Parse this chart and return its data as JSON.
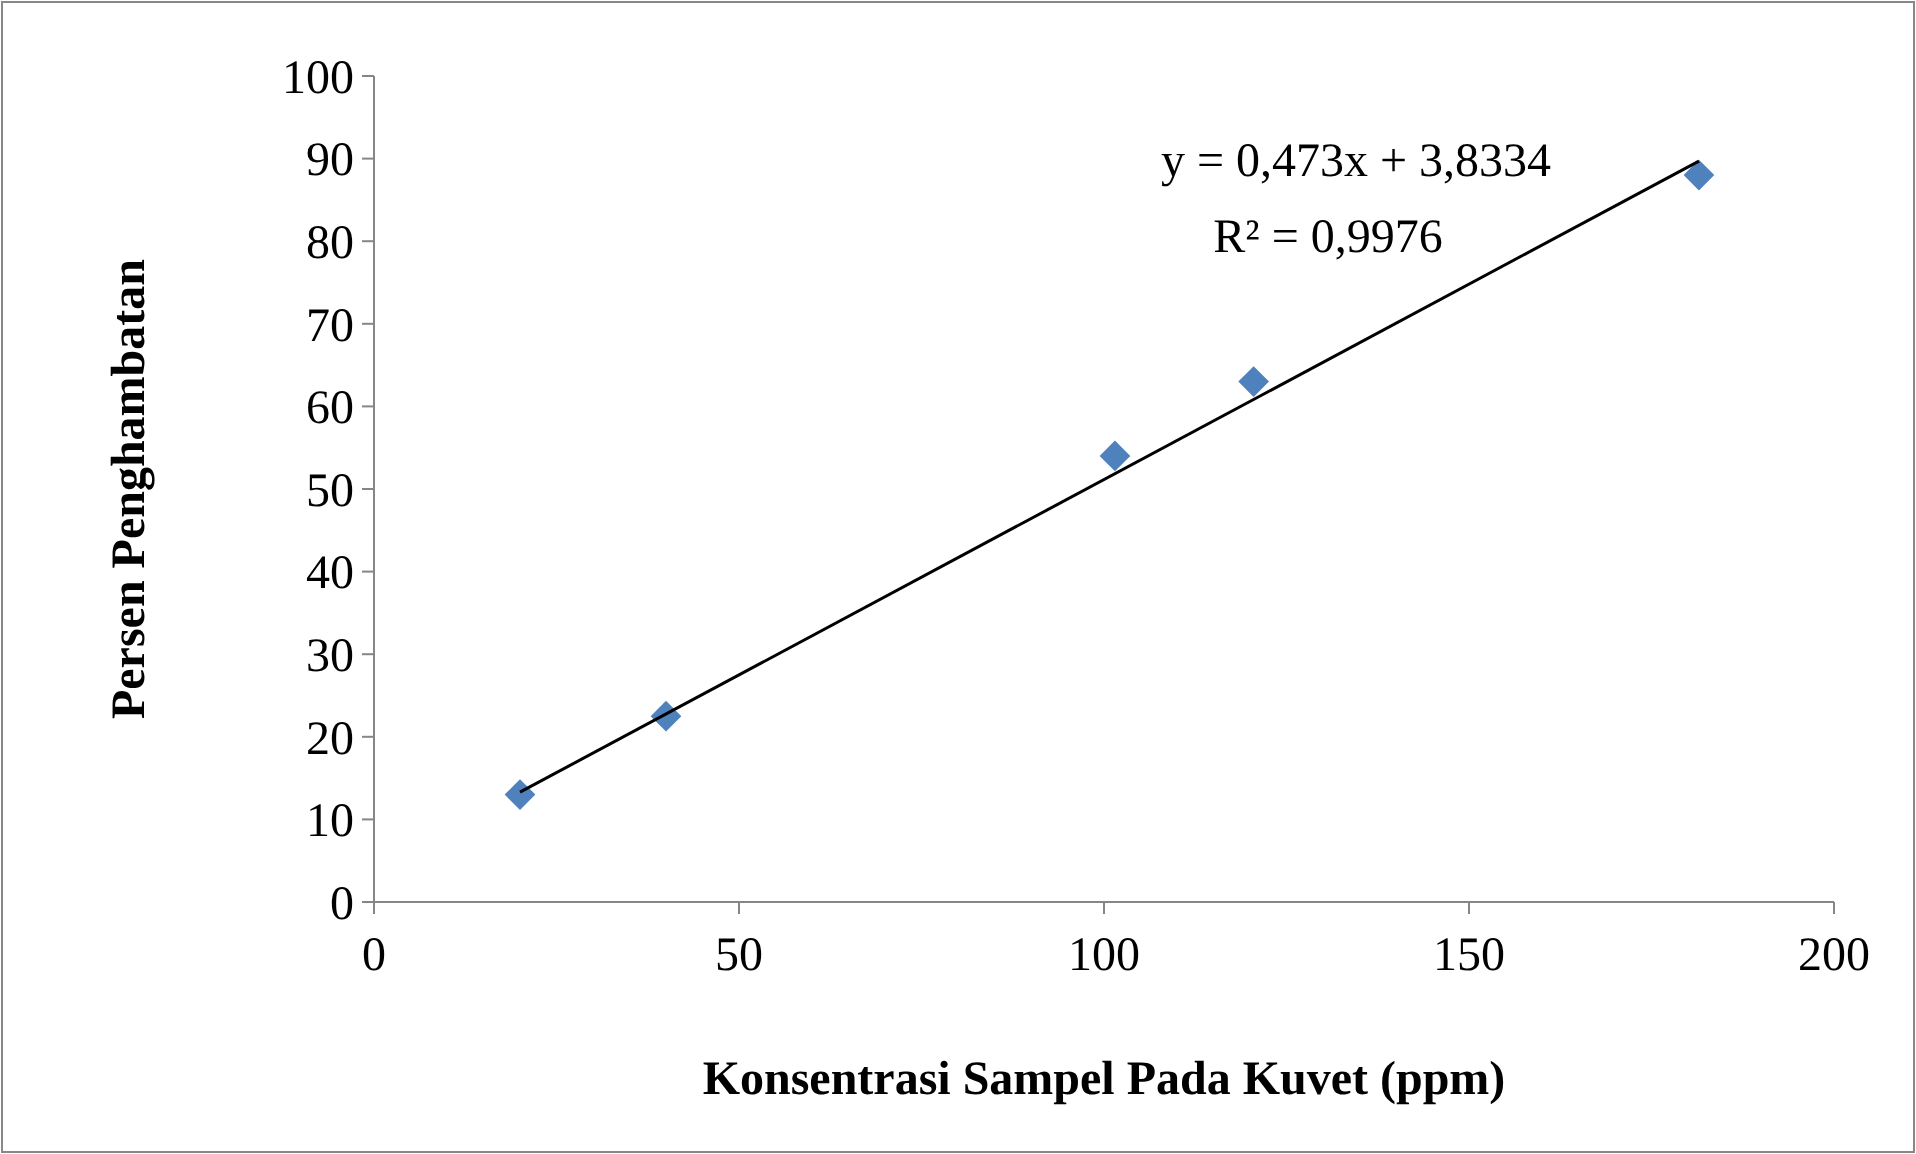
{
  "chart_data": {
    "type": "scatter",
    "xlabel": "Konsentrasi Sampel Pada Kuvet (ppm)",
    "ylabel": "Persen Penghambatan",
    "xlim": [
      0,
      200
    ],
    "xticks": [
      0,
      50,
      100,
      150,
      200
    ],
    "ylim": [
      0,
      100
    ],
    "yticks": [
      0,
      10,
      20,
      30,
      40,
      50,
      60,
      70,
      80,
      90,
      100
    ],
    "grid": false,
    "marker": "diamond",
    "series": [
      {
        "type": "scatter",
        "color": "#4f81bd",
        "x": [
          20,
          40,
          101.5,
          120.5,
          181.5
        ],
        "values": [
          13,
          22.5,
          54,
          63,
          88
        ]
      },
      {
        "type": "line",
        "color": "#000000",
        "line_style": "solid",
        "marker": "none",
        "x": [
          20,
          181.5
        ],
        "values": [
          13.3,
          89.7
        ]
      }
    ],
    "annotations": [
      "y = 0,473x + 3,8334",
      "R² = 0,9976"
    ]
  }
}
